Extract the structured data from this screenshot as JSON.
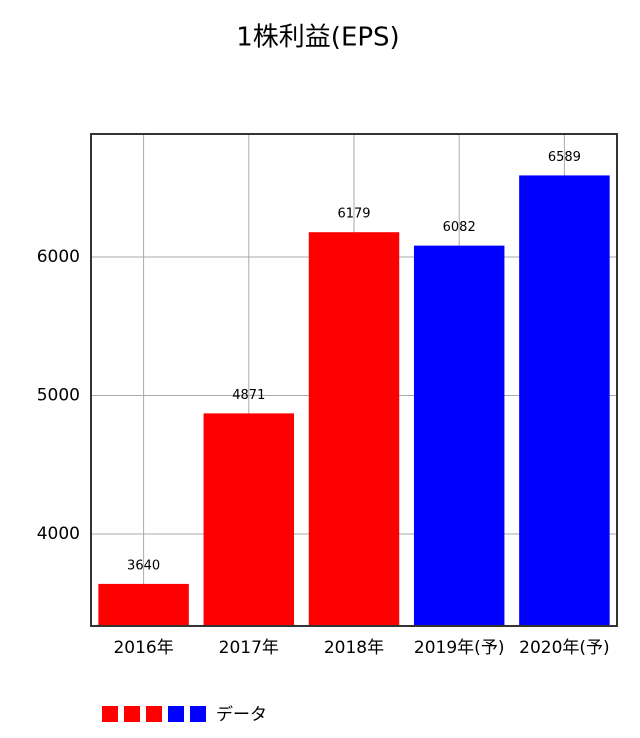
{
  "chart_data": {
    "type": "bar",
    "title": "1株利益(EPS)",
    "categories": [
      "2016年",
      "2017年",
      "2018年",
      "2019年(予)",
      "2020年(予)"
    ],
    "series": [
      {
        "name": "データ",
        "colors": [
          "#ff0000",
          "#ff0000",
          "#ff0000",
          "#0000ff",
          "#0000ff"
        ],
        "values": [
          3640,
          4871,
          6179,
          6082,
          6589
        ]
      }
    ],
    "ylim": [
      3336,
      6888
    ],
    "yticks": [
      4000,
      5000,
      6000
    ],
    "grid": true,
    "legend": "bottom-left"
  }
}
